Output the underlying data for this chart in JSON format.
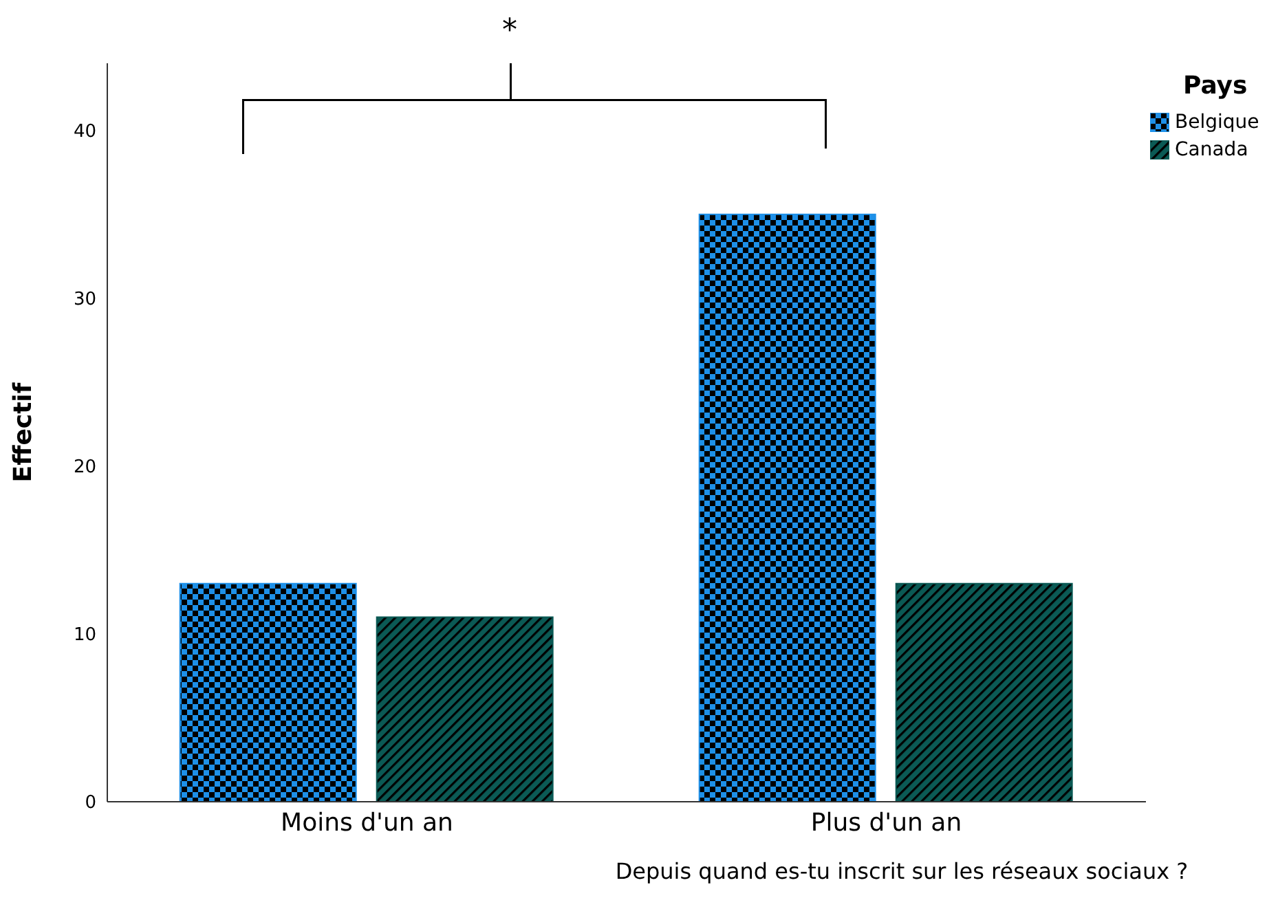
{
  "chart_data": {
    "type": "bar",
    "xlabel": "Depuis quand es-tu inscrit sur les réseaux sociaux ?",
    "ylabel": "Effectif",
    "legend_title": "Pays",
    "categories": [
      "Moins d'un an",
      "Plus d'un an"
    ],
    "series": [
      {
        "name": "Belgique",
        "color": "#1e90e8",
        "values": [
          13,
          35
        ]
      },
      {
        "name": "Canada",
        "color": "#0b5a55",
        "values": [
          11,
          13
        ]
      }
    ],
    "ylim": [
      0,
      44
    ],
    "yticks": [
      0,
      10,
      20,
      30,
      40
    ],
    "legend": "top right",
    "annotations": [
      "*"
    ]
  }
}
